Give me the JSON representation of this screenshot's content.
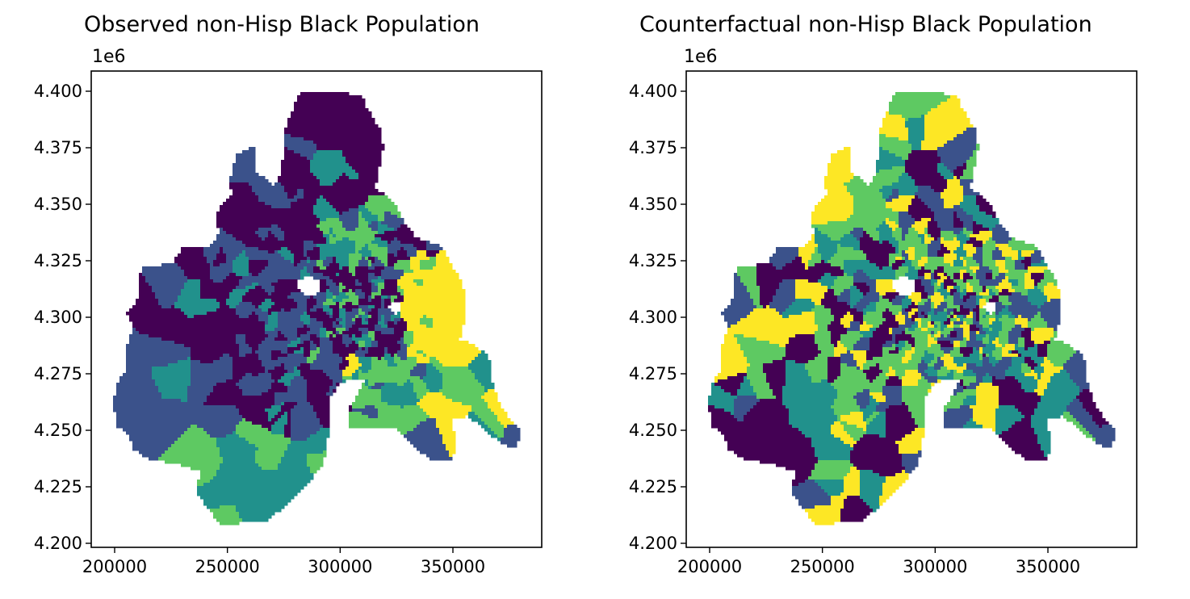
{
  "colors": {
    "v0": "#440154",
    "v1": "#3b528b",
    "v2": "#21918c",
    "v3": "#5ec962",
    "v4": "#fde725"
  },
  "panels": [
    {
      "title": "Observed non-Hisp Black Population",
      "offset_text": "1e6",
      "xlim": [
        190000,
        388000
      ],
      "ylim": [
        4199000,
        4409000
      ],
      "xticks": [
        "200000",
        "250000",
        "300000",
        "350000"
      ],
      "yticks": [
        "4.200",
        "4.225",
        "4.250",
        "4.275",
        "4.300",
        "4.325",
        "4.350",
        "4.375",
        "4.400"
      ]
    },
    {
      "title": "Counterfactual non-Hisp Black Population",
      "offset_text": "1e6",
      "xlim": [
        190000,
        388000
      ],
      "ylim": [
        4199000,
        4409000
      ],
      "xticks": [
        "200000",
        "250000",
        "300000",
        "350000"
      ],
      "yticks": [
        "4.200",
        "4.225",
        "4.250",
        "4.275",
        "4.300",
        "4.325",
        "4.350",
        "4.375",
        "4.400"
      ]
    }
  ]
}
